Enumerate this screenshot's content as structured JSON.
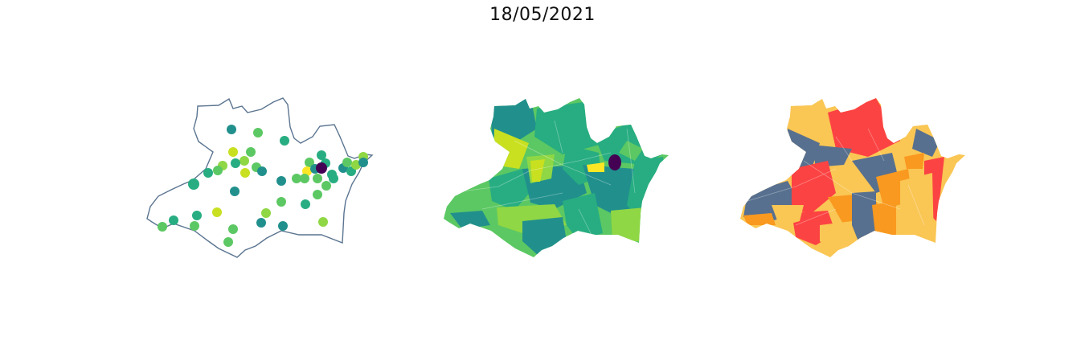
{
  "figure": {
    "title": "18/05/2021"
  },
  "colors": {
    "outline": "#5a7490",
    "viridis": [
      "#440154",
      "#21908d",
      "#27ad81",
      "#5cc863",
      "#8fd744",
      "#c8e020",
      "#fde725"
    ],
    "categories": [
      "#58708f",
      "#fac654",
      "#f9991f",
      "#fc4343"
    ]
  },
  "panels": [
    {
      "name": "points-map",
      "kind": "bubble map"
    },
    {
      "name": "choropleth-map",
      "kind": "viridis choropleth"
    },
    {
      "name": "category-map",
      "kind": "categorical choropleth"
    }
  ]
}
